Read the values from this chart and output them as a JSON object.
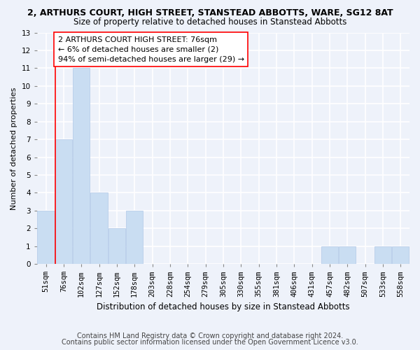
{
  "title": "2, ARTHURS COURT, HIGH STREET, STANSTEAD ABBOTTS, WARE, SG12 8AT",
  "subtitle": "Size of property relative to detached houses in Stanstead Abbotts",
  "xlabel": "Distribution of detached houses by size in Stanstead Abbotts",
  "ylabel": "Number of detached properties",
  "bins": [
    "51sqm",
    "76sqm",
    "102sqm",
    "127sqm",
    "152sqm",
    "178sqm",
    "203sqm",
    "228sqm",
    "254sqm",
    "279sqm",
    "305sqm",
    "330sqm",
    "355sqm",
    "381sqm",
    "406sqm",
    "431sqm",
    "457sqm",
    "482sqm",
    "507sqm",
    "533sqm",
    "558sqm"
  ],
  "values": [
    3,
    7,
    11,
    4,
    2,
    3,
    0,
    0,
    0,
    0,
    0,
    0,
    0,
    0,
    0,
    0,
    1,
    1,
    0,
    1,
    1
  ],
  "bar_color": "#c9ddf2",
  "bar_edge_color": "#b0c8e8",
  "vline_color": "red",
  "vline_pos": 0.525,
  "annotation_text": "2 ARTHURS COURT HIGH STREET: 76sqm\n← 6% of detached houses are smaller (2)\n94% of semi-detached houses are larger (29) →",
  "annotation_box_color": "white",
  "annotation_box_edgecolor": "red",
  "ylim": [
    0,
    13
  ],
  "yticks": [
    0,
    1,
    2,
    3,
    4,
    5,
    6,
    7,
    8,
    9,
    10,
    11,
    12,
    13
  ],
  "footnote1": "Contains HM Land Registry data © Crown copyright and database right 2024.",
  "footnote2": "Contains public sector information licensed under the Open Government Licence v3.0.",
  "bg_color": "#eef2fa",
  "plot_bg_color": "#eef2fa",
  "grid_color": "white",
  "title_fontsize": 9,
  "subtitle_fontsize": 8.5,
  "xlabel_fontsize": 8.5,
  "ylabel_fontsize": 8,
  "tick_fontsize": 7.5,
  "annotation_fontsize": 8,
  "footnote_fontsize": 7
}
